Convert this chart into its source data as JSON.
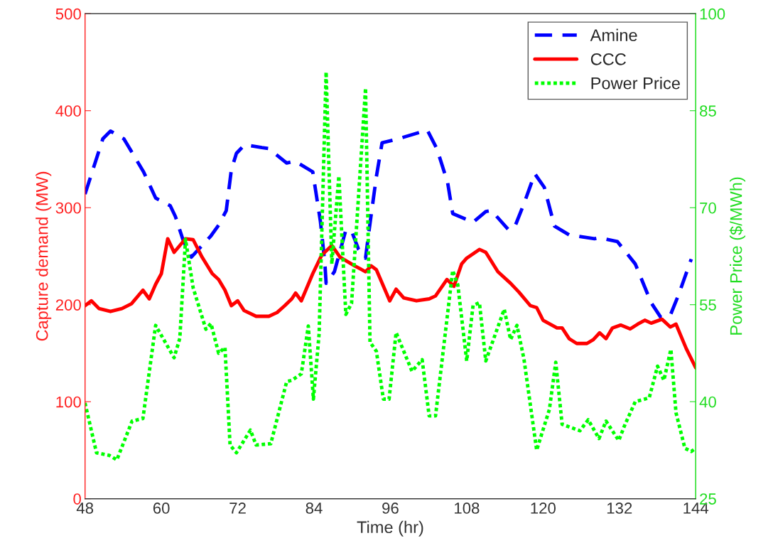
{
  "chart_data": {
    "type": "line",
    "xlabel": "Time (hr)",
    "ylabel": "Capture demand (MW)",
    "y2label": "Power Price ($/MWh)",
    "xlim": [
      48,
      144
    ],
    "xticks": [
      48,
      60,
      72,
      84,
      96,
      108,
      120,
      132,
      144
    ],
    "ylim": [
      0,
      500
    ],
    "yticks": [
      0,
      100,
      200,
      300,
      400,
      500
    ],
    "y2lim": [
      25,
      100
    ],
    "y2ticks": [
      25,
      40,
      55,
      70,
      85,
      100
    ],
    "grid": false,
    "legend": "top right",
    "series": [
      {
        "name": "Amine",
        "color": "#0000ff",
        "line_style": "dashed",
        "x": [
          48,
          50.8,
          52,
          54.1,
          57.2,
          59.1,
          61.4,
          62.2,
          63.4,
          64.7,
          67.8,
          69,
          70.2,
          71,
          71.8,
          73.1,
          75.8,
          76.9,
          79.7,
          81,
          83.8,
          85,
          85.7,
          85.9,
          87.2,
          89,
          89.9,
          91,
          92.1,
          92.6,
          93.8,
          94.7,
          96.7,
          101.8,
          103.3,
          105,
          105.8,
          109,
          111,
          111.9,
          114.6,
          115.6,
          117,
          118.7,
          120.2,
          121.8,
          124.1,
          128.1,
          128.9,
          131.7,
          134.5,
          137,
          138.5,
          140,
          141.3,
          143.3
        ],
        "values": [
          314,
          371,
          379,
          371,
          337,
          310,
          302,
          291,
          267,
          249,
          271,
          282,
          297,
          339,
          356,
          365,
          362,
          361,
          346,
          348,
          337,
          286,
          243,
          222,
          234,
          277,
          276,
          257,
          248,
          274,
          332,
          367,
          370,
          380,
          361,
          326,
          294,
          285,
          296,
          297,
          277,
          281,
          304,
          335,
          321,
          281,
          272,
          268,
          269,
          265,
          242,
          202,
          187,
          189,
          210,
          247
        ]
      },
      {
        "name": "CCC",
        "color": "#ff0000",
        "line_style": "solid",
        "x": [
          48,
          49,
          50.2,
          52,
          53.8,
          55.3,
          57.1,
          58.1,
          59.1,
          60,
          61,
          62,
          63.8,
          65,
          66.4,
          68,
          69,
          70,
          71,
          72,
          73,
          74.9,
          76.9,
          78.2,
          79.4,
          80.5,
          81.1,
          82,
          83.8,
          85.2,
          86.8,
          88.1,
          90.4,
          92.1,
          93,
          93.8,
          95.9,
          96.9,
          98.1,
          100.1,
          102.1,
          103.1,
          104.9,
          106,
          107.2,
          108,
          110,
          111,
          112.9,
          114.9,
          116.2,
          118,
          119,
          120,
          122.2,
          123,
          124.1,
          125.3,
          126.9,
          127.9,
          128.9,
          129.9,
          130.9,
          132.2,
          133.7,
          134.9,
          136,
          137,
          138.7,
          140,
          140.9,
          142.5,
          144
        ],
        "values": [
          199,
          204,
          196,
          193,
          196,
          201,
          215,
          206,
          221,
          232,
          268,
          254,
          268,
          267,
          249,
          232,
          226,
          215,
          199,
          204,
          194,
          188,
          188,
          192,
          199,
          206,
          212,
          204,
          232,
          251,
          261,
          249,
          240,
          234,
          240,
          236,
          204,
          216,
          207,
          204,
          206,
          209,
          226,
          219,
          242,
          248,
          257,
          254,
          234,
          222,
          213,
          199,
          197,
          184,
          176,
          176,
          165,
          160,
          160,
          164,
          171,
          165,
          176,
          179,
          175,
          180,
          184,
          181,
          185,
          177,
          180,
          155,
          135
        ]
      },
      {
        "name": "Power Price",
        "color": "#00ff00",
        "line_style": "dotted",
        "axis": "y2",
        "x": [
          48,
          49.8,
          51.8,
          53,
          55.4,
          57.1,
          59.1,
          62,
          62.9,
          63.8,
          65,
          67,
          67.8,
          69,
          70,
          70.8,
          71.8,
          74,
          74.9,
          77.2,
          79.7,
          80.5,
          82,
          83.1,
          83.9,
          84.8,
          85.9,
          86.8,
          87.9,
          89,
          89.9,
          92.1,
          92.8,
          93.8,
          94.9,
          95.8,
          96.9,
          99.4,
          101,
          102.1,
          103.1,
          105.8,
          106.6,
          108,
          109,
          110,
          111,
          113.9,
          114.9,
          115.9,
          117,
          119,
          121,
          122,
          123,
          125.8,
          127.1,
          128.8,
          129.9,
          131.9,
          132.9,
          134.5,
          136.7,
          138,
          139,
          140.1,
          140.9,
          142.3,
          143.3,
          144
        ],
        "values": [
          39.8,
          32.1,
          31.7,
          31.0,
          37.0,
          37.4,
          51.8,
          46.8,
          49.8,
          65.1,
          57.6,
          51.2,
          52.1,
          47.5,
          48.4,
          33.3,
          32.1,
          35.6,
          33.3,
          33.5,
          43.1,
          43.3,
          44.3,
          51.7,
          40.4,
          50.5,
          91.0,
          61.3,
          74.9,
          53.5,
          55.2,
          88.5,
          49.2,
          47.8,
          40.4,
          40.4,
          50.7,
          44.7,
          46.5,
          37.8,
          37.8,
          60.3,
          58.1,
          46.3,
          54.9,
          55.3,
          46.3,
          54.3,
          49.6,
          51.8,
          46.6,
          32.5,
          38.8,
          46.1,
          36.5,
          35.5,
          37.2,
          34.3,
          37.0,
          34.0,
          36.5,
          40.0,
          40.6,
          45.5,
          43.3,
          48.1,
          38.3,
          32.8,
          32.3,
          32.8
        ]
      }
    ]
  }
}
